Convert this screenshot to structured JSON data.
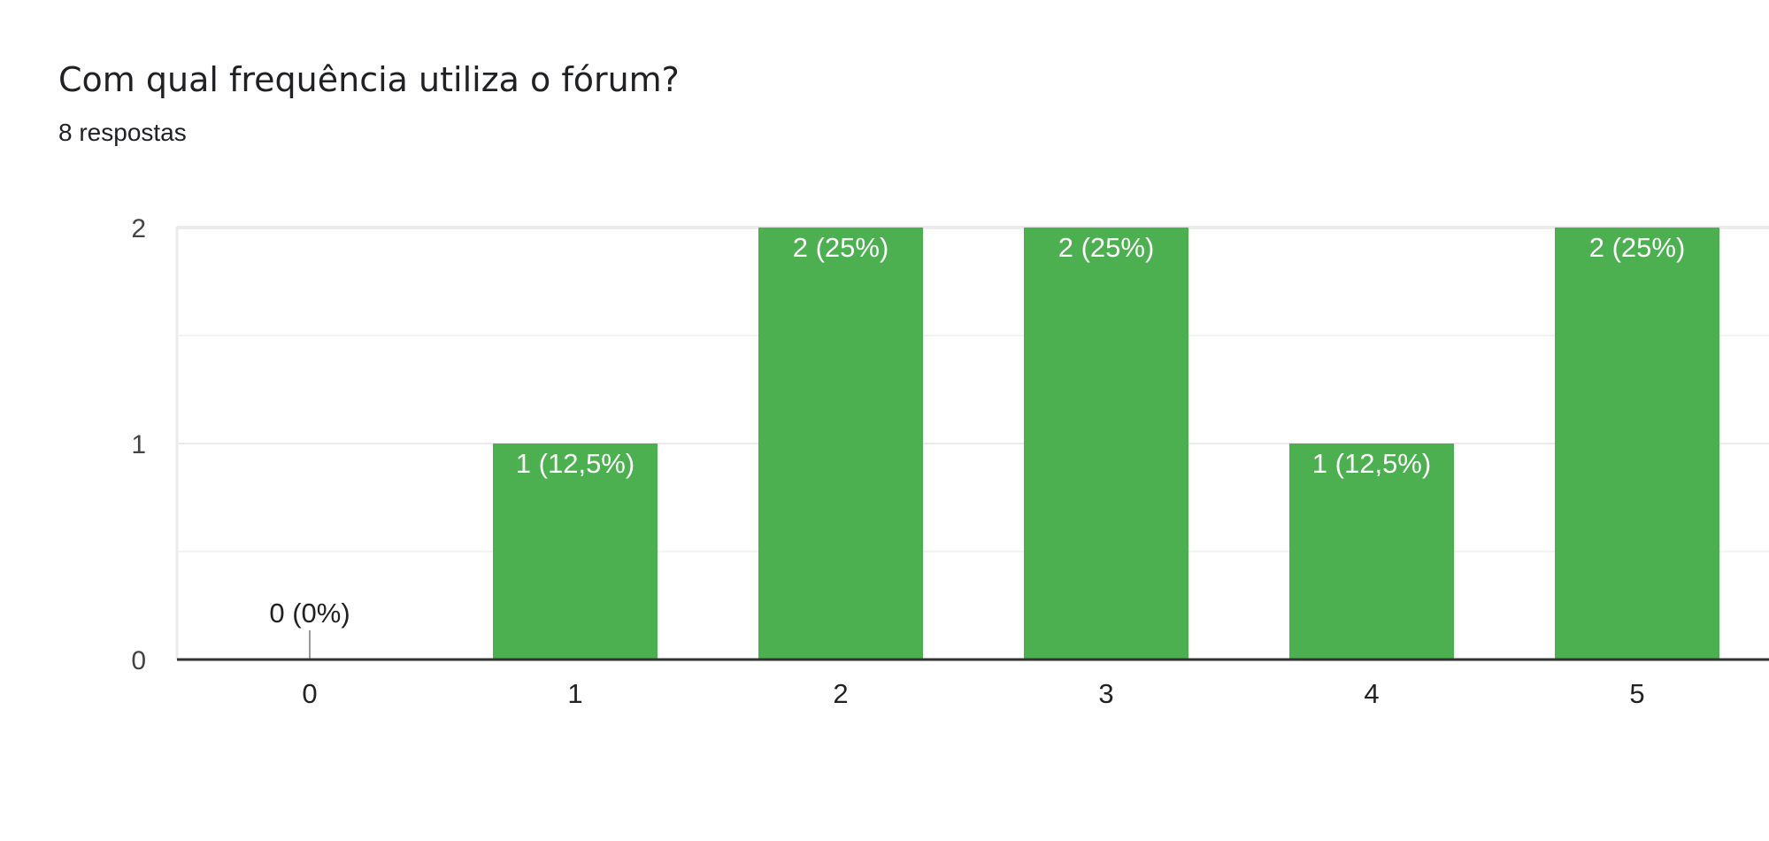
{
  "question": {
    "title": "Com qual frequência utiliza o fórum?",
    "responses": "8 respostas"
  },
  "colors": {
    "bar": "#4caf50",
    "axis": "#333333",
    "grid": "#ebebeb",
    "minor_grid": "#f3f3f3",
    "text": "#444444",
    "bar_label": "#ffffff",
    "zero_label": "#222222"
  },
  "chart_data": {
    "type": "bar",
    "categories": [
      "0",
      "1",
      "2",
      "3",
      "4",
      "5"
    ],
    "values": [
      0,
      1,
      2,
      2,
      1,
      2
    ],
    "data_labels": [
      "0 (0%)",
      "1 (12,5%)",
      "2 (25%)",
      "2 (25%)",
      "1 (12,5%)",
      "2 (25%)"
    ],
    "ylim": [
      0,
      2
    ],
    "yticks": [
      0,
      1,
      2
    ],
    "grid": true,
    "legend": "none"
  }
}
